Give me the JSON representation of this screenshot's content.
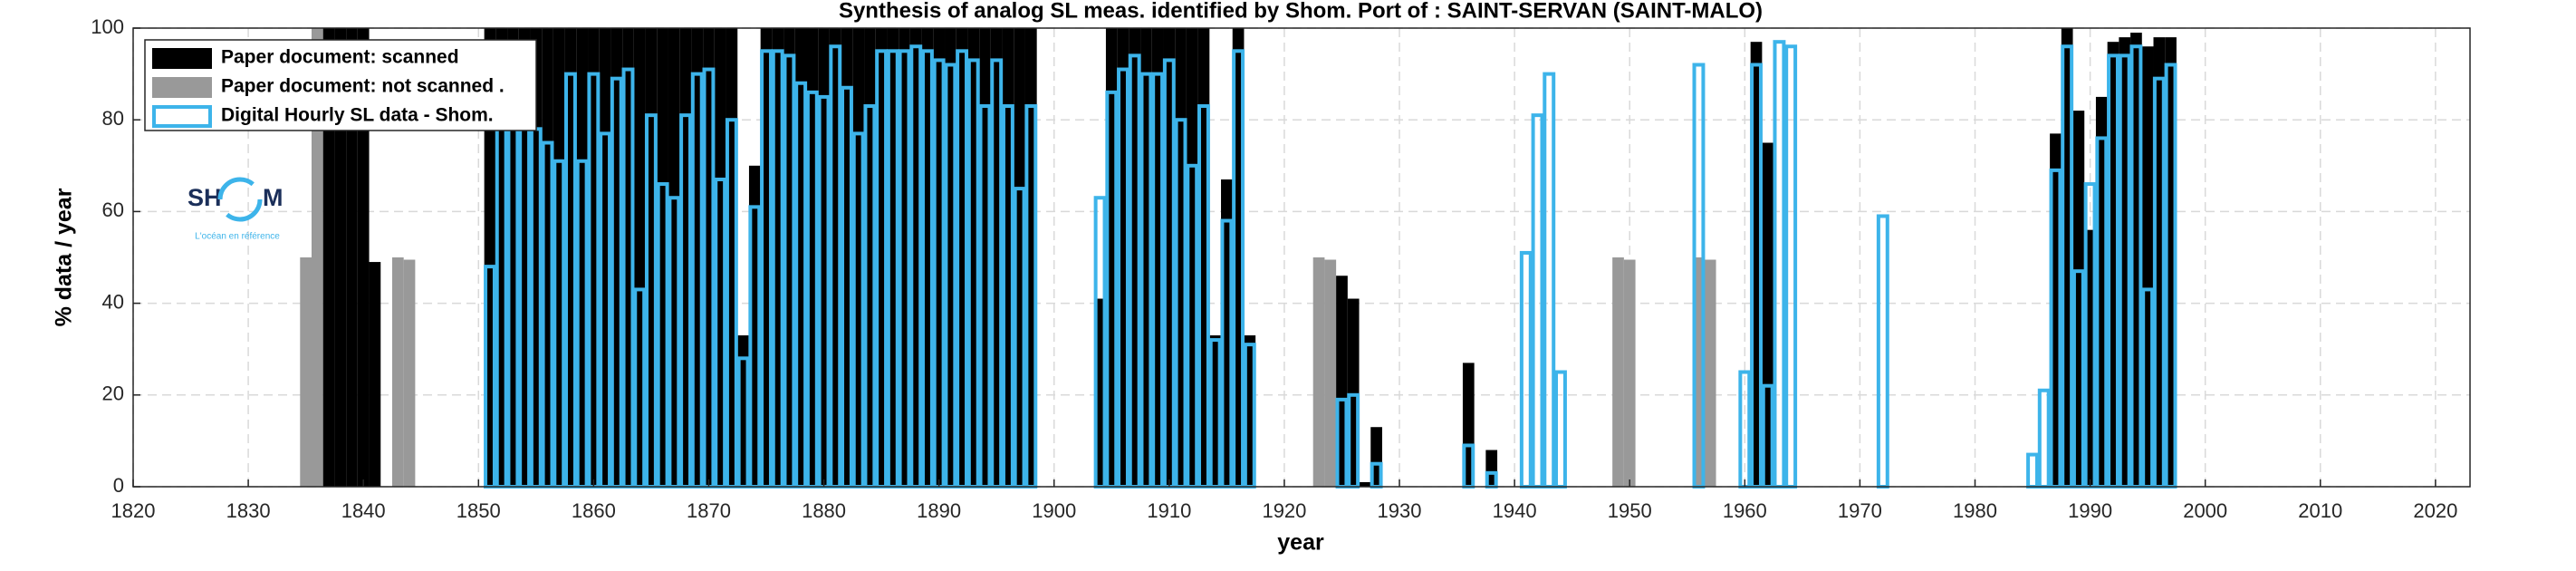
{
  "chart_data": {
    "type": "bar",
    "title": "Synthesis of analog SL meas. identified by Shom. Port of : SAINT-SERVAN (SAINT-MALO)",
    "xlabel": "year",
    "ylabel": "% data / year",
    "xlim": [
      1820,
      2023
    ],
    "ylim": [
      0,
      100
    ],
    "xticks": [
      1820,
      1830,
      1840,
      1850,
      1860,
      1870,
      1880,
      1890,
      1900,
      1910,
      1920,
      1930,
      1940,
      1950,
      1960,
      1970,
      1980,
      1990,
      2000,
      2010,
      2020
    ],
    "yticks": [
      0,
      20,
      40,
      60,
      80,
      100
    ],
    "grid": true,
    "legend": "upper left",
    "series": [
      {
        "name": "Paper document: scanned",
        "color": "#000000",
        "style": "filled",
        "x": [
          1837,
          1838,
          1839,
          1840,
          1841,
          1851,
          1852,
          1853,
          1854,
          1855,
          1856,
          1857,
          1858,
          1859,
          1860,
          1861,
          1862,
          1863,
          1864,
          1865,
          1866,
          1867,
          1868,
          1869,
          1870,
          1871,
          1872,
          1873,
          1874,
          1875,
          1876,
          1877,
          1878,
          1879,
          1880,
          1881,
          1882,
          1883,
          1884,
          1885,
          1886,
          1887,
          1888,
          1889,
          1890,
          1891,
          1892,
          1893,
          1894,
          1895,
          1896,
          1897,
          1898,
          1904,
          1905,
          1906,
          1907,
          1908,
          1909,
          1910,
          1911,
          1912,
          1913,
          1914,
          1915,
          1916,
          1917,
          1925,
          1926,
          1927,
          1928,
          1936,
          1938,
          1961,
          1962,
          1987,
          1988,
          1989,
          1990,
          1991,
          1992,
          1993,
          1994,
          1995,
          1996,
          1997
        ],
        "values": [
          100,
          100,
          100,
          100,
          49,
          100,
          100,
          100,
          100,
          100,
          100,
          100,
          100,
          100,
          100,
          100,
          100,
          100,
          100,
          100,
          100,
          100,
          100,
          100,
          100,
          100,
          100,
          33,
          70,
          100,
          100,
          100,
          100,
          100,
          100,
          100,
          100,
          100,
          100,
          100,
          100,
          100,
          100,
          100,
          100,
          100,
          100,
          100,
          100,
          100,
          100,
          100,
          100,
          41,
          100,
          100,
          100,
          100,
          100,
          100,
          100,
          100,
          100,
          33,
          67,
          100,
          33,
          46,
          41,
          1,
          13,
          27,
          8,
          97,
          75,
          77,
          100,
          82,
          56,
          85,
          97,
          98,
          99,
          96,
          98,
          98
        ]
      },
      {
        "name": "Paper document: not scanned   .",
        "color": "#999999",
        "style": "filled",
        "x": [
          1835,
          1836,
          1843,
          1844,
          1923,
          1924,
          1949,
          1950,
          1956,
          1957
        ],
        "values": [
          50,
          100,
          50,
          49.5,
          50,
          49.5,
          50,
          49.5,
          50,
          49.5
        ]
      },
      {
        "name": "Digital Hourly SL data - Shom.",
        "color": "#3db4ea",
        "style": "outline",
        "x": [
          1851,
          1852,
          1853,
          1854,
          1855,
          1856,
          1857,
          1858,
          1859,
          1860,
          1861,
          1862,
          1863,
          1864,
          1865,
          1866,
          1867,
          1868,
          1869,
          1870,
          1871,
          1872,
          1873,
          1874,
          1875,
          1876,
          1877,
          1878,
          1879,
          1880,
          1881,
          1882,
          1883,
          1884,
          1885,
          1886,
          1887,
          1888,
          1889,
          1890,
          1891,
          1892,
          1893,
          1894,
          1895,
          1896,
          1897,
          1898,
          1904,
          1905,
          1906,
          1907,
          1908,
          1909,
          1910,
          1911,
          1912,
          1913,
          1914,
          1915,
          1916,
          1917,
          1925,
          1926,
          1928,
          1936,
          1938,
          1941,
          1942,
          1943,
          1944,
          1956,
          1960,
          1961,
          1962,
          1963,
          1964,
          1972,
          1985,
          1986,
          1987,
          1988,
          1989,
          1990,
          1991,
          1992,
          1993,
          1994,
          1995,
          1996,
          1997
        ],
        "values": [
          48,
          78,
          78,
          78,
          78,
          75,
          71,
          90,
          71,
          90,
          77,
          89,
          91,
          43,
          81,
          66,
          63,
          81,
          90,
          91,
          67,
          80,
          28,
          61,
          95,
          95,
          94,
          88,
          86,
          85,
          96,
          87,
          77,
          83,
          95,
          95,
          95,
          96,
          95,
          93,
          92,
          95,
          93,
          83,
          93,
          83,
          65,
          83,
          63,
          86,
          91,
          94,
          90,
          90,
          93,
          80,
          70,
          83,
          32,
          58,
          95,
          31,
          19,
          20,
          5,
          9,
          3,
          51,
          81,
          90,
          25,
          92,
          25,
          92,
          22,
          97,
          96,
          59,
          7,
          21,
          69,
          96,
          47,
          66,
          76,
          94,
          94,
          96,
          43,
          89,
          92
        ]
      }
    ]
  },
  "logo": {
    "left": "SH",
    "right": "M",
    "tagline": "L'océan en référence"
  }
}
